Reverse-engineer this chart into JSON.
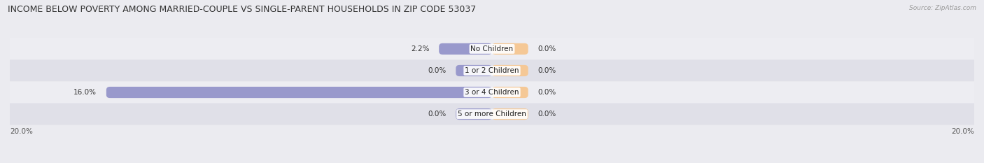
{
  "title": "INCOME BELOW POVERTY AMONG MARRIED-COUPLE VS SINGLE-PARENT HOUSEHOLDS IN ZIP CODE 53037",
  "source": "Source: ZipAtlas.com",
  "categories": [
    "No Children",
    "1 or 2 Children",
    "3 or 4 Children",
    "5 or more Children"
  ],
  "married_values": [
    2.2,
    0.0,
    16.0,
    0.0
  ],
  "single_values": [
    0.0,
    0.0,
    0.0,
    0.0
  ],
  "married_color": "#9999cc",
  "single_color": "#f5c896",
  "bar_height": 0.52,
  "min_bar_width": 1.5,
  "xlim_left": -20.0,
  "xlim_right": 20.0,
  "background_color": "#ebebf0",
  "row_color_light": "#ededf2",
  "row_color_dark": "#e0e0e8",
  "title_fontsize": 9.0,
  "source_fontsize": 6.5,
  "label_fontsize": 7.5,
  "cat_fontsize": 7.5
}
